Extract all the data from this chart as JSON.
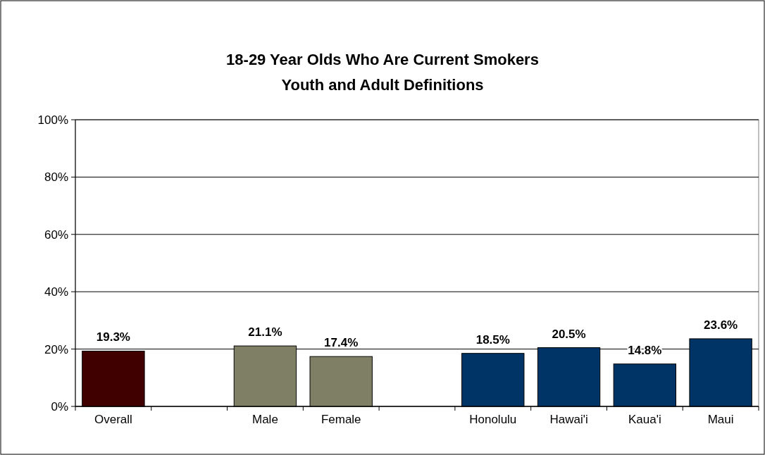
{
  "chart_data": {
    "type": "bar",
    "title": "18-29 Year Olds Who Are Current Smokers",
    "subtitle": "Youth and Adult Definitions",
    "categories": [
      "Overall",
      null,
      "Male",
      "Female",
      null,
      "Honolulu",
      "Hawai'i",
      "Kaua'i",
      "Maui"
    ],
    "values": [
      19.3,
      null,
      21.1,
      17.4,
      null,
      18.5,
      20.5,
      14.8,
      23.6
    ],
    "colors": [
      "#400000",
      null,
      "#7f7f66",
      "#7f7f66",
      null,
      "#003366",
      "#003366",
      "#003366",
      "#003366"
    ],
    "ylim": [
      0,
      100
    ],
    "yticks": [
      {
        "value": 0,
        "label": "0%"
      },
      {
        "value": 20,
        "label": "20%"
      },
      {
        "value": 40,
        "label": "40%"
      },
      {
        "value": 60,
        "label": "60%"
      },
      {
        "value": 80,
        "label": "80%"
      },
      {
        "value": 100,
        "label": "100%"
      }
    ],
    "value_labels": [
      "19.3%",
      null,
      "21.1%",
      "17.4%",
      null,
      "18.5%",
      "20.5%",
      "14.8%",
      "23.6%"
    ],
    "grid": "y"
  }
}
